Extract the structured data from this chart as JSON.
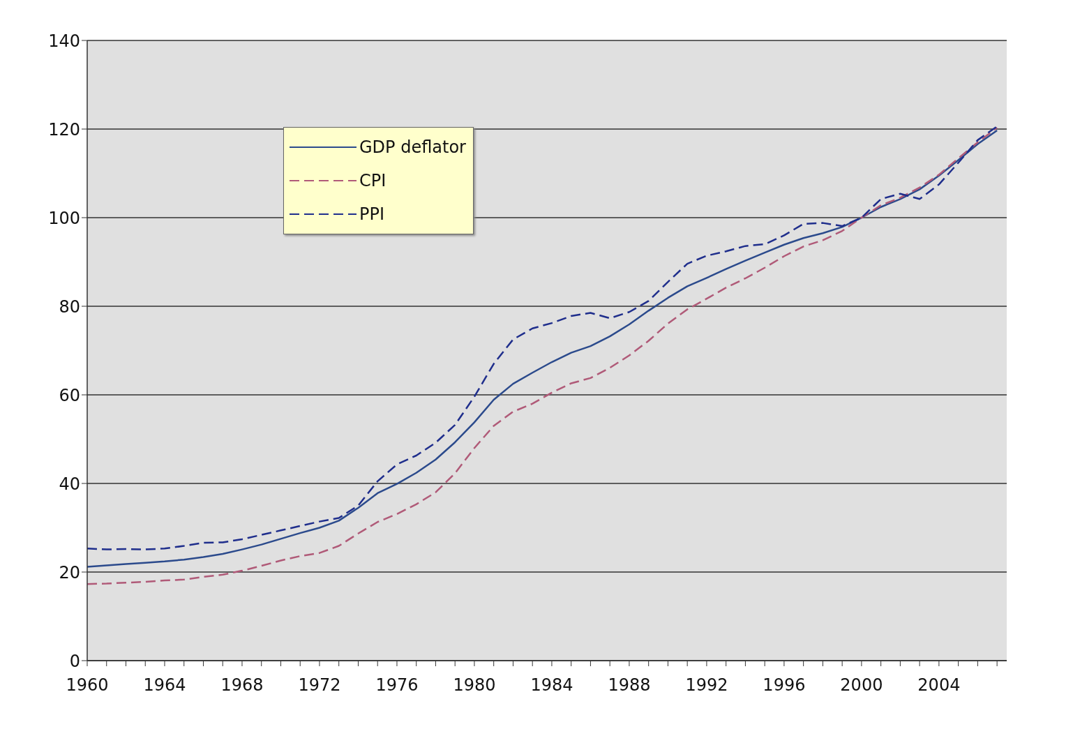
{
  "chart_data": {
    "type": "line",
    "x": [
      1960,
      1961,
      1962,
      1963,
      1964,
      1965,
      1966,
      1967,
      1968,
      1969,
      1970,
      1971,
      1972,
      1973,
      1974,
      1975,
      1976,
      1977,
      1978,
      1979,
      1980,
      1981,
      1982,
      1983,
      1984,
      1985,
      1986,
      1987,
      1988,
      1989,
      1990,
      1991,
      1992,
      1993,
      1994,
      1995,
      1996,
      1997,
      1998,
      1999,
      2000,
      2001,
      2002,
      2003,
      2004,
      2005,
      2006,
      2007
    ],
    "series": [
      {
        "name": "GDP deflator",
        "color": "#2b4a8c",
        "line_style": "solid",
        "values": [
          21.2,
          21.5,
          21.8,
          22.1,
          22.4,
          22.8,
          23.4,
          24.1,
          25.1,
          26.2,
          27.5,
          28.8,
          30.0,
          31.6,
          34.5,
          37.8,
          39.9,
          42.4,
          45.4,
          49.3,
          53.8,
          58.9,
          62.5,
          65.0,
          67.4,
          69.5,
          71.0,
          73.2,
          75.9,
          79.0,
          81.9,
          84.5,
          86.4,
          88.4,
          90.3,
          92.1,
          93.9,
          95.4,
          96.5,
          97.9,
          100,
          102.4,
          104.2,
          106.4,
          109.5,
          113.0,
          116.6,
          119.7
        ]
      },
      {
        "name": "CPI",
        "color": "#b05a78",
        "line_style": "dashed",
        "values": [
          17.3,
          17.4,
          17.6,
          17.8,
          18.1,
          18.3,
          18.9,
          19.4,
          20.3,
          21.4,
          22.6,
          23.6,
          24.3,
          25.9,
          28.7,
          31.3,
          33.1,
          35.3,
          38.0,
          42.3,
          48.0,
          53.0,
          56.2,
          58.0,
          60.5,
          62.6,
          63.8,
          66.1,
          68.9,
          72.2,
          76.1,
          79.3,
          81.7,
          84.2,
          86.3,
          88.7,
          91.3,
          93.5,
          94.9,
          97.0,
          100,
          102.8,
          104.5,
          106.8,
          109.7,
          113.4,
          117.0,
          120.3
        ]
      },
      {
        "name": "PPI",
        "color": "#1f2e8c",
        "line_style": "dashed",
        "values": [
          25.3,
          25.1,
          25.2,
          25.1,
          25.3,
          25.9,
          26.6,
          26.7,
          27.4,
          28.4,
          29.4,
          30.4,
          31.4,
          32.2,
          35.0,
          40.5,
          44.3,
          46.3,
          49.2,
          53.2,
          59.6,
          67.0,
          72.5,
          75.0,
          76.2,
          77.8,
          78.5,
          77.3,
          78.7,
          81.2,
          85.5,
          89.6,
          91.4,
          92.4,
          93.6,
          94.0,
          96.0,
          98.6,
          98.8,
          98.1,
          100,
          104.2,
          105.4,
          104.2,
          107.5,
          112.4,
          117.5,
          120.6
        ]
      }
    ],
    "xlim": [
      1960,
      2007.5
    ],
    "xticks": [
      1960,
      {
        "value": 1961,
        "label": null
      },
      {
        "value": 1962,
        "label": null
      },
      {
        "value": 1963,
        "label": null
      },
      1964,
      {
        "value": 1965,
        "label": null
      },
      {
        "value": 1966,
        "label": null
      },
      {
        "value": 1967,
        "label": null
      },
      1968,
      {
        "value": 1969,
        "label": null
      },
      {
        "value": 1970,
        "label": null
      },
      {
        "value": 1971,
        "label": null
      },
      1972,
      {
        "value": 1973,
        "label": null
      },
      {
        "value": 1974,
        "label": null
      },
      {
        "value": 1975,
        "label": null
      },
      1976,
      {
        "value": 1977,
        "label": null
      },
      {
        "value": 1978,
        "label": null
      },
      {
        "value": 1979,
        "label": null
      },
      1980,
      {
        "value": 1981,
        "label": null
      },
      {
        "value": 1982,
        "label": null
      },
      {
        "value": 1983,
        "label": null
      },
      1984,
      {
        "value": 1985,
        "label": null
      },
      {
        "value": 1986,
        "label": null
      },
      {
        "value": 1987,
        "label": null
      },
      1988,
      {
        "value": 1989,
        "label": null
      },
      {
        "value": 1990,
        "label": null
      },
      {
        "value": 1991,
        "label": null
      },
      1992,
      {
        "value": 1993,
        "label": null
      },
      {
        "value": 1994,
        "label": null
      },
      {
        "value": 1995,
        "label": null
      },
      1996,
      {
        "value": 1997,
        "label": null
      },
      {
        "value": 1998,
        "label": null
      },
      {
        "value": 1999,
        "label": null
      },
      2000,
      {
        "value": 2001,
        "label": null
      },
      {
        "value": 2002,
        "label": null
      },
      {
        "value": 2003,
        "label": null
      },
      2004,
      {
        "value": 2005,
        "label": null
      },
      {
        "value": 2006,
        "label": null
      },
      {
        "value": 2007,
        "label": null
      }
    ],
    "ylim": [
      0,
      140
    ],
    "yticks": [
      0,
      20,
      40,
      60,
      80,
      100,
      120,
      140
    ],
    "grid": "y",
    "legend": "top left",
    "marker": "none"
  }
}
